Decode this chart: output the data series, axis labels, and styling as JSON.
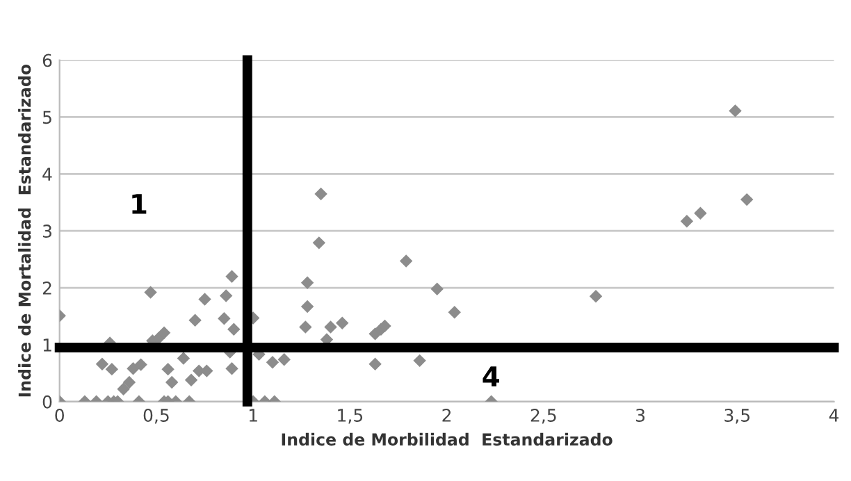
{
  "chart_data": {
    "type": "scatter",
    "xlabel": "Indice de Morbilidad  Estandarizado",
    "ylabel": "Indice de Mortalidad  Estandarizado",
    "x": [
      0,
      0,
      0.13,
      0.19,
      0.25,
      0.28,
      0.3,
      0.41,
      0.54,
      0.56,
      0.6,
      0.67,
      1.0,
      1.06,
      1.11,
      0.26,
      0.22,
      0.27,
      0.33,
      0.36,
      0.38,
      0.42,
      0.47,
      0.48,
      0.51,
      0.54,
      0.56,
      0.58,
      0.64,
      0.68,
      0.7,
      0.72,
      0.76,
      0.75,
      0.86,
      0.89,
      0.85,
      0.9,
      0.89,
      0.88,
      0.97,
      1.0,
      1.03,
      1.1,
      1.16,
      1.27,
      1.28,
      1.28,
      1.35,
      1.34,
      1.4,
      1.46,
      1.38,
      1.79,
      1.63,
      1.66,
      1.68,
      1.95,
      2.04,
      1.63,
      1.86,
      2.23,
      3.49,
      3.55,
      3.24,
      3.31,
      2.77
    ],
    "values": [
      1.51,
      0,
      0,
      0,
      0,
      0,
      0,
      0,
      0,
      0,
      0,
      0,
      0,
      0,
      0,
      1.03,
      0.66,
      0.57,
      0.22,
      0.34,
      0.58,
      0.65,
      1.92,
      1.07,
      1.11,
      1.21,
      0.57,
      0.34,
      0.76,
      0.38,
      1.43,
      0.54,
      0.54,
      1.8,
      1.86,
      2.2,
      1.46,
      1.27,
      0.58,
      0.87,
      null,
      1.47,
      0.83,
      0.69,
      0.74,
      1.31,
      1.67,
      2.09,
      3.65,
      2.79,
      1.31,
      1.38,
      1.09,
      2.47,
      1.19,
      1.27,
      1.33,
      1.98,
      1.57,
      0.66,
      0.72,
      0,
      5.11,
      3.55,
      3.17,
      3.31,
      1.85
    ],
    "color": "#8c8c8c",
    "marker": "diamond",
    "xlim": [
      0,
      4
    ],
    "ylim": [
      0,
      6
    ],
    "xticks": [
      0,
      {
        "value": 0.5,
        "label": "0,5"
      },
      1,
      {
        "value": 1.5,
        "label": "1,5"
      },
      2,
      {
        "value": 2.5,
        "label": "2,5"
      },
      3,
      {
        "value": 3.5,
        "label": "3,5"
      },
      4
    ],
    "yticks": [
      0,
      1,
      2,
      3,
      4,
      5,
      6
    ],
    "grid": "y",
    "ref_lines": [
      {
        "axis": "x",
        "value": 0.97,
        "color": "#000000"
      },
      {
        "axis": "y",
        "value": 0.95,
        "color": "#000000"
      }
    ],
    "annotations": [
      "1",
      "4"
    ]
  }
}
